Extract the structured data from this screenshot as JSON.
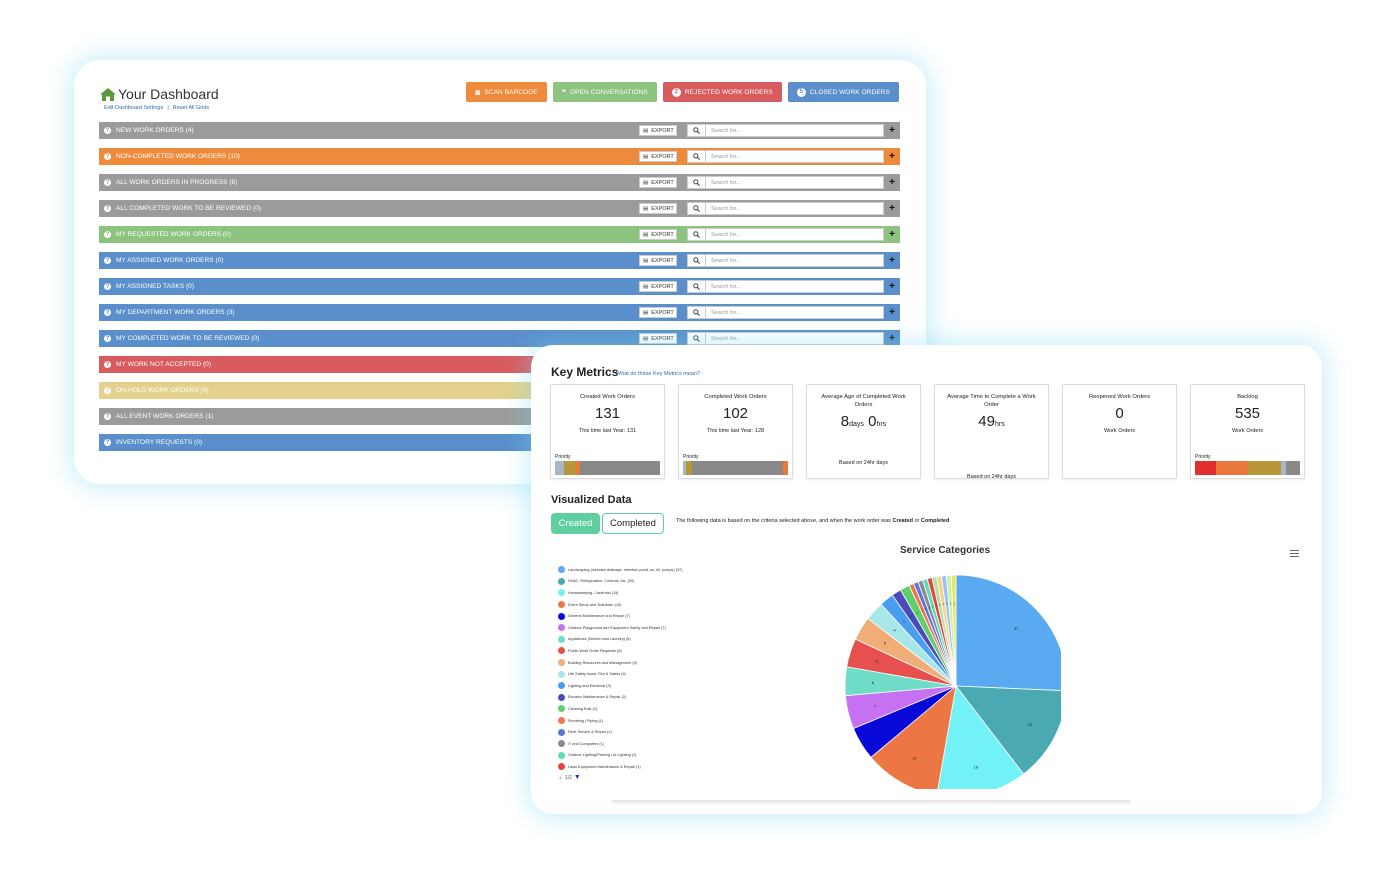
{
  "dashboard": {
    "title": "Your Dashboard",
    "links": {
      "edit": "Edit Dashboard Settings",
      "sep": "|",
      "reset": "Reset All Grids"
    },
    "buttons": [
      {
        "label": "SCAN BARCODE",
        "color": "#ee8a3c",
        "icon": "camera-icon"
      },
      {
        "label": "OPEN CONVERSATIONS",
        "color": "#8cc37f",
        "icon": "chat-icon"
      },
      {
        "label": "REJECTED WORK ORDERS",
        "color": "#d85c5e",
        "badge": "2"
      },
      {
        "label": "CLOSED WORK ORDERS",
        "color": "#5a8fcc",
        "badge": "5"
      }
    ],
    "export_label": "EXPORT",
    "search_placeholder": "Search for...",
    "rows": [
      {
        "label": "NEW WORK ORDERS (4)",
        "color": "#9b9b9b",
        "tools": true
      },
      {
        "label": "NON-COMPLETED WORK ORDERS (10)",
        "color": "#ee8a3c",
        "tools": true
      },
      {
        "label": "ALL WORK ORDERS IN PROGRESS (8)",
        "color": "#9b9b9b",
        "tools": true
      },
      {
        "label": "ALL COMPLETED WORK TO BE REVIEWED (0)",
        "color": "#9b9b9b",
        "tools": true
      },
      {
        "label": "MY REQUESTED WORK ORDERS (0)",
        "color": "#8cc37f",
        "tools": true
      },
      {
        "label": "MY ASSIGNED WORK ORDERS (0)",
        "color": "#5a8fcc",
        "tools": true
      },
      {
        "label": "MY ASSIGNED TASKS (0)",
        "color": "#5a8fcc",
        "tools": true
      },
      {
        "label": "MY DEPARTMENT WORK ORDERS (3)",
        "color": "#5a8fcc",
        "tools": true
      },
      {
        "label": "MY COMPLETED WORK TO BE REVIEWED (0)",
        "color": "#5a8fcc",
        "tools": true
      },
      {
        "label": "MY WORK NOT ACCEPTED (0)",
        "color": "#d85c5e",
        "tools": false
      },
      {
        "label": "ON-HOLD WORK ORDERS (0)",
        "color": "#e4d18e",
        "tools": false
      },
      {
        "label": "ALL EVENT WORK ORDERS (1)",
        "color": "#9b9b9b",
        "tools": false
      },
      {
        "label": "INVENTORY REQUESTS (0)",
        "color": "#5a8fcc",
        "tools": false
      }
    ]
  },
  "key_metrics": {
    "title": "Key Metrics",
    "help_link": "What do these Key Metrics mean?",
    "cards": [
      {
        "title": "Created Work Orders",
        "value": "131",
        "unit": "",
        "value2": "",
        "unit2": "",
        "sub": "This time last Year: 131",
        "priority_label": "Priority",
        "bar": [
          {
            "pct": 9,
            "color": "#a6b8c6"
          },
          {
            "pct": 11,
            "color": "#b8963a"
          },
          {
            "pct": 4,
            "color": "#e9793a"
          },
          {
            "pct": 76,
            "color": "#888888"
          }
        ]
      },
      {
        "title": "Completed Work Orders",
        "value": "102",
        "unit": "",
        "value2": "",
        "unit2": "",
        "sub": "This time last Year: 128",
        "priority_label": "Priority",
        "bar": [
          {
            "pct": 3,
            "color": "#a6b8c6"
          },
          {
            "pct": 6,
            "color": "#b8963a"
          },
          {
            "pct": 86,
            "color": "#888888"
          },
          {
            "pct": 5,
            "color": "#e9793a"
          }
        ]
      },
      {
        "title": "Average Age of Completed Work Orders",
        "value": "8",
        "unit": "days",
        "value2": "0",
        "unit2": "hrs",
        "sub": "Based on 24hr days",
        "priority_label": "",
        "bar": []
      },
      {
        "title": "Average Time to Complete a Work Order",
        "value": "49",
        "unit": "hrs",
        "value2": "",
        "unit2": "",
        "sub": "Based on 24hr days",
        "priority_label": "",
        "bar": []
      },
      {
        "title": "Reopened Work Orders",
        "value": "0",
        "unit": "",
        "value2": "",
        "unit2": "",
        "sub": "Work Orders",
        "priority_label": "",
        "bar": []
      },
      {
        "title": "Backlog",
        "value": "535",
        "unit": "",
        "value2": "",
        "unit2": "",
        "sub": "Work Orders",
        "priority_label": "Priority",
        "bar": [
          {
            "pct": 20,
            "color": "#e0302e"
          },
          {
            "pct": 30,
            "color": "#e9793a"
          },
          {
            "pct": 32,
            "color": "#b8963a"
          },
          {
            "pct": 5,
            "color": "#a6b8c6"
          },
          {
            "pct": 13,
            "color": "#888888"
          }
        ]
      }
    ]
  },
  "visualized": {
    "title": "Visualized Data",
    "toggle_created": "Created",
    "toggle_completed": "Completed",
    "note_prefix": "The following data is based on the criteria selected above, and when the work order was ",
    "note_created": "Created",
    "note_or": " or ",
    "note_completed": "Completed",
    "legend_page": "1/2"
  },
  "chart_data": {
    "type": "pie",
    "title": "Service Categories",
    "legend_placement": "left",
    "slices": [
      {
        "label": "Landscaping (includes drainage, retention pond, ac, till, pumps) (37)",
        "value": 37,
        "color": "#5aaaf2"
      },
      {
        "label": "HVAC, Refrigeration, Controls, etc. (20)",
        "value": 20,
        "color": "#4aa9b3"
      },
      {
        "label": "Housekeeping / Janitorial (19)",
        "value": 19,
        "color": "#72f2f6"
      },
      {
        "label": "Event Setup and Teardown (16)",
        "value": 16,
        "color": "#ec7744"
      },
      {
        "label": "General Maintenance and Repair (7)",
        "value": 7,
        "color": "#0a0ad8"
      },
      {
        "label": "Outdoor Playground and Equipment Safety and Repair (7)",
        "value": 7,
        "color": "#c571f2"
      },
      {
        "label": "Appliances (Kitchen and Laundry) (6)",
        "value": 6,
        "color": "#6fdcc8"
      },
      {
        "label": "Public Work Order Requests (6)",
        "value": 6,
        "color": "#e6514f"
      },
      {
        "label": "Building Resources and Management (5)",
        "value": 5,
        "color": "#f0ad77"
      },
      {
        "label": "Life Safety Issue: Fire & Safety (4)",
        "value": 4,
        "color": "#a8e6ea"
      },
      {
        "label": "Lighting and Electrical (3)",
        "value": 3,
        "color": "#4a9ef0"
      },
      {
        "label": "Elevator Maintenance & Repair (2)",
        "value": 2,
        "color": "#4a4ab8"
      },
      {
        "label": "Cleaning Bulk (2)",
        "value": 2,
        "color": "#5fcf6b"
      },
      {
        "label": "Plumbing | Piping (1)",
        "value": 1,
        "color": "#f0764f"
      },
      {
        "label": "Fleet Service & Repair (1)",
        "value": 1,
        "color": "#5a78d8"
      },
      {
        "label": "IT and Computers (1)",
        "value": 1,
        "color": "#8a8a9a"
      },
      {
        "label": "Outdoor Lighting/Parking Lot Lighting (1)",
        "value": 1,
        "color": "#5fdcb8"
      },
      {
        "label": "Lawn Equipment Maintenance & Repair (1)",
        "value": 1,
        "color": "#e8443f"
      },
      {
        "label": "",
        "value": 1,
        "color": "#b6e0a6"
      },
      {
        "label": "",
        "value": 1,
        "color": "#f2d48a"
      },
      {
        "label": "",
        "value": 1,
        "color": "#9ec0f2"
      },
      {
        "label": "",
        "value": 1,
        "color": "#c8f2a6"
      },
      {
        "label": "",
        "value": 1,
        "color": "#e6e66a"
      }
    ],
    "legend_count": 18
  }
}
